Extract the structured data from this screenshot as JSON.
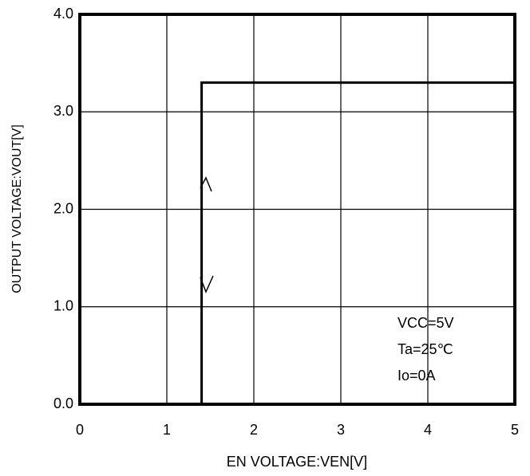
{
  "chart_data": {
    "type": "line",
    "xlabel": "EN VOLTAGE:VEN[V]",
    "ylabel": "OUTPUT VOLTAGE:VOUT[V]",
    "x": [
      1.4,
      1.4,
      5
    ],
    "series": [
      {
        "color": "#000000",
        "values": [
          0,
          3.3,
          3.3
        ]
      }
    ],
    "xlim": [
      0,
      5
    ],
    "xticks": [
      0,
      1,
      2,
      3,
      4,
      5
    ],
    "ylim": [
      0,
      4
    ],
    "yticks": [
      {
        "value": 0,
        "label": "0.0"
      },
      {
        "value": 1,
        "label": "1.0"
      },
      {
        "value": 2,
        "label": "2.0"
      },
      {
        "value": 3,
        "label": "3.0"
      },
      {
        "value": 4,
        "label": "4.0"
      }
    ],
    "grid": true,
    "annotations": [
      "VCC=5V",
      "Ta=25℃",
      "Io=0A"
    ]
  }
}
